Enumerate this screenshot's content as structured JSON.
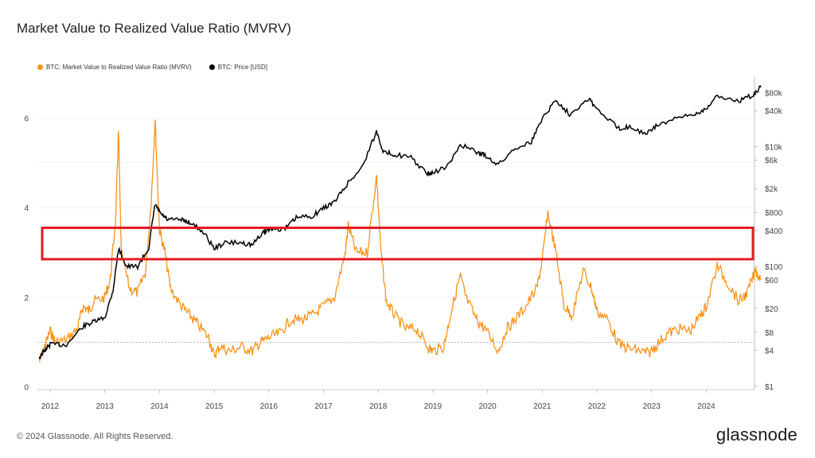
{
  "title": "Market Value to Realized Value Ratio (MVRV)",
  "footer": "© 2024 Glassnode. All Rights Reserved.",
  "brand": "glassnode",
  "colors": {
    "mvrv": "#f7931a",
    "price": "#000000",
    "highlight": "#e31b23",
    "grid": "#ececec"
  },
  "chart_data": {
    "type": "line",
    "title": "Market Value to Realized Value Ratio (MVRV)",
    "legend": [
      "BTC: Market Value to Realized Value Ratio (MVRV)",
      "BTC: Price [USD]"
    ],
    "x_ticks": [
      "2012",
      "2013",
      "2014",
      "2015",
      "2016",
      "2017",
      "2018",
      "2019",
      "2020",
      "2021",
      "2022",
      "2023",
      "2024"
    ],
    "left_axis": {
      "ticks": [
        "0",
        "2",
        "4",
        "6"
      ],
      "range": [
        0,
        6.8
      ]
    },
    "right_axis": {
      "ticks": [
        "$1",
        "$4",
        "$8",
        "$20",
        "$60",
        "$100",
        "$400",
        "$800",
        "$2k",
        "$6k",
        "$10k",
        "$40k",
        "$80k"
      ],
      "scale": "log",
      "range": [
        1,
        110000
      ]
    },
    "reference_line": 1,
    "highlight_band": [
      2.85,
      3.55
    ],
    "series": [
      {
        "name": "BTC: Market Value to Realized Value Ratio (MVRV)",
        "axis": "left",
        "points": [
          [
            2011.8,
            0.55
          ],
          [
            2011.9,
            0.9
          ],
          [
            2012.0,
            1.25
          ],
          [
            2012.1,
            1.0
          ],
          [
            2012.3,
            1.05
          ],
          [
            2012.5,
            1.3
          ],
          [
            2012.6,
            1.8
          ],
          [
            2012.7,
            1.7
          ],
          [
            2012.8,
            1.9
          ],
          [
            2013.0,
            2.0
          ],
          [
            2013.1,
            2.4
          ],
          [
            2013.2,
            3.8
          ],
          [
            2013.25,
            5.7
          ],
          [
            2013.3,
            3.0
          ],
          [
            2013.45,
            2.2
          ],
          [
            2013.6,
            2.1
          ],
          [
            2013.75,
            2.6
          ],
          [
            2013.85,
            4.2
          ],
          [
            2013.92,
            5.95
          ],
          [
            2014.0,
            3.5
          ],
          [
            2014.1,
            3.0
          ],
          [
            2014.2,
            2.2
          ],
          [
            2014.4,
            1.8
          ],
          [
            2014.55,
            1.6
          ],
          [
            2014.7,
            1.4
          ],
          [
            2014.9,
            1.1
          ],
          [
            2015.0,
            0.7
          ],
          [
            2015.1,
            0.9
          ],
          [
            2015.3,
            0.8
          ],
          [
            2015.5,
            0.9
          ],
          [
            2015.7,
            0.8
          ],
          [
            2015.85,
            1.0
          ],
          [
            2016.0,
            1.1
          ],
          [
            2016.2,
            1.2
          ],
          [
            2016.4,
            1.5
          ],
          [
            2016.6,
            1.5
          ],
          [
            2016.8,
            1.6
          ],
          [
            2017.0,
            1.8
          ],
          [
            2017.2,
            2.0
          ],
          [
            2017.4,
            3.0
          ],
          [
            2017.45,
            3.6
          ],
          [
            2017.6,
            3.0
          ],
          [
            2017.8,
            3.0
          ],
          [
            2017.97,
            4.7
          ],
          [
            2018.05,
            3.0
          ],
          [
            2018.15,
            1.9
          ],
          [
            2018.3,
            1.6
          ],
          [
            2018.5,
            1.3
          ],
          [
            2018.7,
            1.3
          ],
          [
            2018.9,
            0.9
          ],
          [
            2019.0,
            0.8
          ],
          [
            2019.2,
            0.9
          ],
          [
            2019.3,
            1.5
          ],
          [
            2019.5,
            2.5
          ],
          [
            2019.6,
            2.0
          ],
          [
            2019.8,
            1.5
          ],
          [
            2019.95,
            1.3
          ],
          [
            2020.2,
            0.8
          ],
          [
            2020.35,
            1.3
          ],
          [
            2020.5,
            1.5
          ],
          [
            2020.7,
            1.8
          ],
          [
            2020.9,
            2.2
          ],
          [
            2021.0,
            2.8
          ],
          [
            2021.1,
            3.9
          ],
          [
            2021.25,
            3.0
          ],
          [
            2021.4,
            1.8
          ],
          [
            2021.55,
            1.6
          ],
          [
            2021.75,
            2.6
          ],
          [
            2021.9,
            2.2
          ],
          [
            2022.0,
            1.7
          ],
          [
            2022.2,
            1.5
          ],
          [
            2022.4,
            0.95
          ],
          [
            2022.6,
            0.85
          ],
          [
            2022.8,
            0.8
          ],
          [
            2022.95,
            0.75
          ],
          [
            2023.1,
            0.95
          ],
          [
            2023.3,
            1.2
          ],
          [
            2023.5,
            1.3
          ],
          [
            2023.7,
            1.25
          ],
          [
            2023.9,
            1.6
          ],
          [
            2024.0,
            1.8
          ],
          [
            2024.2,
            2.7
          ],
          [
            2024.4,
            2.3
          ],
          [
            2024.6,
            1.9
          ],
          [
            2024.75,
            2.1
          ],
          [
            2024.9,
            2.6
          ],
          [
            2025.0,
            2.4
          ]
        ]
      },
      {
        "name": "BTC: Price [USD]",
        "axis": "right",
        "points": [
          [
            2011.8,
            3
          ],
          [
            2011.9,
            4
          ],
          [
            2012.0,
            5
          ],
          [
            2012.3,
            5
          ],
          [
            2012.6,
            10
          ],
          [
            2012.8,
            12
          ],
          [
            2013.0,
            14
          ],
          [
            2013.15,
            40
          ],
          [
            2013.25,
            200
          ],
          [
            2013.4,
            100
          ],
          [
            2013.6,
            100
          ],
          [
            2013.8,
            200
          ],
          [
            2013.92,
            1100
          ],
          [
            2014.0,
            800
          ],
          [
            2014.15,
            600
          ],
          [
            2014.4,
            600
          ],
          [
            2014.55,
            550
          ],
          [
            2014.8,
            380
          ],
          [
            2015.0,
            200
          ],
          [
            2015.2,
            250
          ],
          [
            2015.5,
            250
          ],
          [
            2015.7,
            230
          ],
          [
            2015.9,
            380
          ],
          [
            2016.0,
            420
          ],
          [
            2016.3,
            430
          ],
          [
            2016.5,
            650
          ],
          [
            2016.8,
            700
          ],
          [
            2017.0,
            950
          ],
          [
            2017.2,
            1200
          ],
          [
            2017.45,
            2500
          ],
          [
            2017.7,
            4500
          ],
          [
            2017.97,
            18000
          ],
          [
            2018.1,
            8000
          ],
          [
            2018.3,
            7500
          ],
          [
            2018.6,
            6500
          ],
          [
            2018.9,
            3500
          ],
          [
            2019.0,
            3600
          ],
          [
            2019.3,
            5000
          ],
          [
            2019.5,
            11000
          ],
          [
            2019.8,
            8000
          ],
          [
            2019.95,
            7200
          ],
          [
            2020.2,
            5000
          ],
          [
            2020.5,
            9500
          ],
          [
            2020.8,
            12000
          ],
          [
            2021.0,
            30000
          ],
          [
            2021.25,
            60000
          ],
          [
            2021.5,
            35000
          ],
          [
            2021.85,
            65000
          ],
          [
            2022.0,
            42000
          ],
          [
            2022.4,
            20000
          ],
          [
            2022.6,
            22000
          ],
          [
            2022.9,
            16000
          ],
          [
            2023.1,
            23000
          ],
          [
            2023.5,
            30000
          ],
          [
            2023.8,
            35000
          ],
          [
            2024.0,
            44000
          ],
          [
            2024.2,
            70000
          ],
          [
            2024.6,
            58000
          ],
          [
            2024.85,
            72000
          ],
          [
            2025.0,
            98000
          ]
        ]
      }
    ]
  }
}
